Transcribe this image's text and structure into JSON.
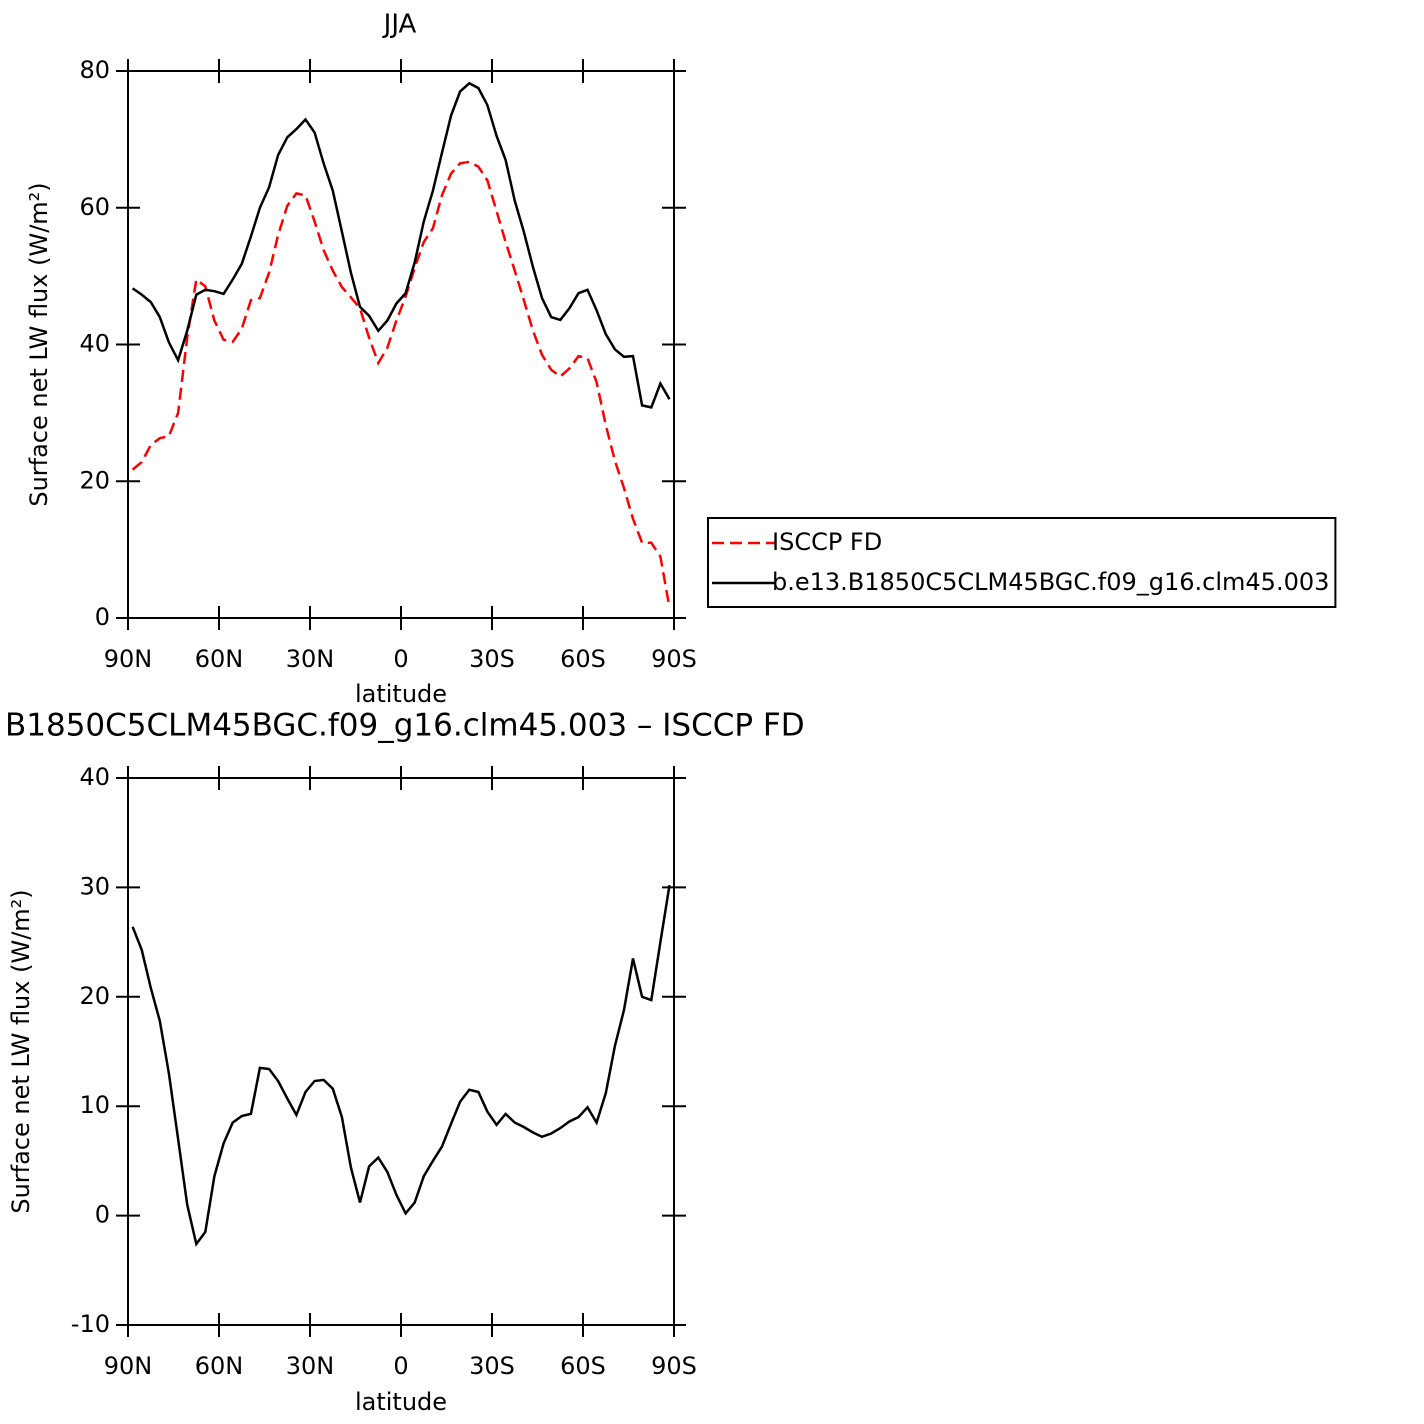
{
  "chart_data": [
    {
      "type": "line",
      "title": "JJA",
      "xlabel": "latitude",
      "ylabel": "Surface net LW flux (W/m²)",
      "x": [
        88.5,
        85.5,
        82.5,
        79.5,
        76.5,
        73.5,
        70.5,
        67.5,
        64.5,
        61.5,
        58.5,
        55.5,
        52.5,
        49.5,
        46.5,
        43.5,
        40.5,
        37.5,
        34.5,
        31.5,
        28.5,
        25.5,
        22.5,
        19.5,
        16.5,
        13.5,
        10.5,
        7.5,
        4.5,
        1.5,
        -1.5,
        -4.5,
        -7.5,
        -10.5,
        -13.5,
        -16.5,
        -19.5,
        -22.5,
        -25.5,
        -28.5,
        -31.5,
        -34.5,
        -37.5,
        -40.5,
        -43.5,
        -46.5,
        -49.5,
        -52.5,
        -55.5,
        -58.5,
        -61.5,
        -64.5,
        -67.5,
        -70.5,
        -73.5,
        -76.5,
        -79.5,
        -82.5,
        -85.5,
        -88.5
      ],
      "series": [
        {
          "name": "ISCCP FD",
          "color": "#ff0000",
          "linestyle": "dashed",
          "values": [
            21.7,
            22.8,
            25.3,
            26.3,
            26.6,
            30,
            41,
            49.5,
            48.5,
            43.5,
            40.7,
            40.4,
            42.3,
            46.5,
            46.8,
            50.5,
            56,
            60.3,
            62.1,
            61.8,
            58,
            53.8,
            50.8,
            48.4,
            46.9,
            45.3,
            41,
            37.3,
            39.5,
            43.5,
            47,
            51.2,
            55,
            57,
            61.8,
            65,
            66.5,
            66.7,
            66,
            64,
            59.5,
            55,
            50.8,
            46.5,
            42,
            38.5,
            36.3,
            35.3,
            36.5,
            38.3,
            38,
            34.5,
            28.2,
            23,
            19,
            14.5,
            11,
            11,
            9,
            1.5
          ]
        },
        {
          "name": "b.e13.B1850C5CLM45BGC.f09_g16.clm45.003",
          "color": "#000000",
          "linestyle": "solid",
          "values": [
            48.2,
            47.3,
            46.2,
            44,
            40.3,
            37.7,
            42,
            47.3,
            48,
            47.8,
            47.4,
            49.5,
            51.8,
            55.8,
            60,
            63,
            67.7,
            70.3,
            71.5,
            72.9,
            71,
            66.5,
            62.5,
            56.5,
            50.5,
            45.5,
            44.2,
            42,
            43.5,
            46,
            47.5,
            52,
            58,
            62.5,
            68,
            73.5,
            77,
            78.2,
            77.5,
            75,
            70.5,
            67,
            61,
            56.5,
            51.3,
            46.8,
            44,
            43.6,
            45.3,
            47.5,
            48,
            45,
            41.5,
            39.3,
            38.2,
            38.3,
            31.1,
            30.8,
            34.3,
            32
          ]
        }
      ],
      "xlim": [
        90,
        -90
      ],
      "xticks": [
        {
          "value": 90,
          "label": "90N"
        },
        {
          "value": 60,
          "label": "60N"
        },
        {
          "value": 30,
          "label": "30N"
        },
        0,
        {
          "value": -30,
          "label": "30S"
        },
        {
          "value": -60,
          "label": "60S"
        },
        {
          "value": -90,
          "label": "90S"
        }
      ],
      "ylim": [
        0,
        80
      ],
      "yticks": [
        0,
        20,
        40,
        60,
        80
      ],
      "legend": "right"
    },
    {
      "type": "line",
      "title": "B1850C5CLM45BGC.f09_g16.clm45.003 – ISCCP FD",
      "xlabel": "latitude",
      "ylabel": "Surface net LW flux (W/m²)",
      "x": [
        88.5,
        85.5,
        82.5,
        79.5,
        76.5,
        73.5,
        70.5,
        67.5,
        64.5,
        61.5,
        58.5,
        55.5,
        52.5,
        49.5,
        46.5,
        43.5,
        40.5,
        37.5,
        34.5,
        31.5,
        28.5,
        25.5,
        22.5,
        19.5,
        16.5,
        13.5,
        10.5,
        7.5,
        4.5,
        1.5,
        -1.5,
        -4.5,
        -7.5,
        -10.5,
        -13.5,
        -16.5,
        -19.5,
        -22.5,
        -25.5,
        -28.5,
        -31.5,
        -34.5,
        -37.5,
        -40.5,
        -43.5,
        -46.5,
        -49.5,
        -52.5,
        -55.5,
        -58.5,
        -61.5,
        -64.5,
        -67.5,
        -70.5,
        -73.5,
        -76.5,
        -79.5,
        -82.5,
        -85.5,
        -88.5
      ],
      "series": [
        {
          "color": "#000000",
          "linestyle": "solid",
          "values": [
            26.4,
            24.3,
            20.8,
            17.8,
            13,
            7,
            1,
            -2.6,
            -1.5,
            3.6,
            6.6,
            8.5,
            9.1,
            9.3,
            13.5,
            13.4,
            12.3,
            10.7,
            9.2,
            11.3,
            12.3,
            12.4,
            11.6,
            9,
            4.4,
            1.2,
            4.5,
            5.3,
            4,
            1.9,
            0.2,
            1.2,
            3.6,
            5,
            6.3,
            8.4,
            10.4,
            11.5,
            11.3,
            9.5,
            8.3,
            9.3,
            8.5,
            8.1,
            7.6,
            7.2,
            7.5,
            8,
            8.6,
            9,
            9.9,
            8.5,
            11.2,
            15.5,
            18.8,
            23.5,
            20,
            19.7,
            25,
            30.2
          ]
        }
      ],
      "xlim": [
        90,
        -90
      ],
      "xticks": [
        {
          "value": 90,
          "label": "90N"
        },
        {
          "value": 60,
          "label": "60N"
        },
        {
          "value": 30,
          "label": "30N"
        },
        0,
        {
          "value": -30,
          "label": "30S"
        },
        {
          "value": -60,
          "label": "60S"
        },
        {
          "value": -90,
          "label": "90S"
        }
      ],
      "ylim": [
        -10,
        40
      ],
      "yticks": [
        -10,
        0,
        10,
        20,
        30,
        40
      ]
    }
  ]
}
